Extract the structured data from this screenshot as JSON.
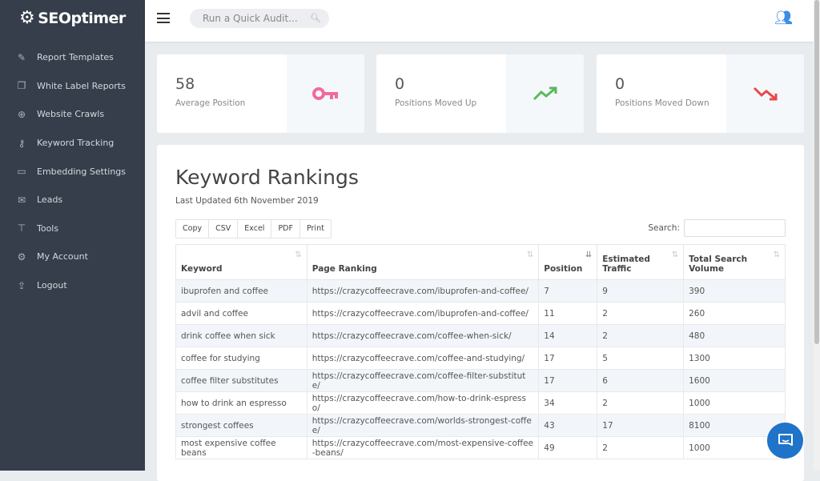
{
  "brand": {
    "name": "SEOptimer"
  },
  "sidebar": {
    "items": [
      {
        "label": "Report Templates",
        "icon": "edit-icon"
      },
      {
        "label": "White Label Reports",
        "icon": "copy-icon"
      },
      {
        "label": "Website Crawls",
        "icon": "search-plus-icon"
      },
      {
        "label": "Keyword Tracking",
        "icon": "key-icon"
      },
      {
        "label": "Embedding Settings",
        "icon": "embed-icon"
      },
      {
        "label": "Leads",
        "icon": "envelope-icon"
      },
      {
        "label": "Tools",
        "icon": "hammer-icon"
      },
      {
        "label": "My Account",
        "icon": "gear-icon"
      },
      {
        "label": "Logout",
        "icon": "upload-icon"
      }
    ]
  },
  "header": {
    "audit_placeholder": "Run a Quick Audit..."
  },
  "stats": [
    {
      "value": "58",
      "label": "Average Position",
      "icon": "key-icon",
      "color": "#f06b9b"
    },
    {
      "value": "0",
      "label": "Positions Moved Up",
      "icon": "trend-up-icon",
      "color": "#5cb85c"
    },
    {
      "value": "0",
      "label": "Positions Moved Down",
      "icon": "trend-down-icon",
      "color": "#e8474c"
    }
  ],
  "rankings": {
    "title": "Keyword Rankings",
    "updated": "Last Updated 6th November 2019",
    "buttons": [
      "Copy",
      "CSV",
      "Excel",
      "PDF",
      "Print"
    ],
    "search_label": "Search:",
    "columns": [
      "Keyword",
      "Page Ranking",
      "Position",
      "Estimated Traffic",
      "Total Search Volume"
    ],
    "rows": [
      [
        "ibuprofen and coffee",
        "https://crazycoffeecrave.com/ibuprofen-and-coffee/",
        "7",
        "9",
        "390"
      ],
      [
        "advil and coffee",
        "https://crazycoffeecrave.com/ibuprofen-and-coffee/",
        "11",
        "2",
        "260"
      ],
      [
        "drink coffee when sick",
        "https://crazycoffeecrave.com/coffee-when-sick/",
        "14",
        "2",
        "480"
      ],
      [
        "coffee for studying",
        "https://crazycoffeecrave.com/coffee-and-studying/",
        "17",
        "5",
        "1300"
      ],
      [
        "coffee filter substitutes",
        "https://crazycoffeecrave.com/coffee-filter-substitute/",
        "17",
        "6",
        "1600"
      ],
      [
        "how to drink an espresso",
        "https://crazycoffeecrave.com/how-to-drink-espresso/",
        "34",
        "2",
        "1000"
      ],
      [
        "strongest coffees",
        "https://crazycoffeecrave.com/worlds-strongest-coffee/",
        "43",
        "17",
        "8100"
      ],
      [
        "most expensive coffee beans",
        "https://crazycoffeecrave.com/most-expensive-coffee-beans/",
        "49",
        "2",
        "1000"
      ]
    ]
  }
}
